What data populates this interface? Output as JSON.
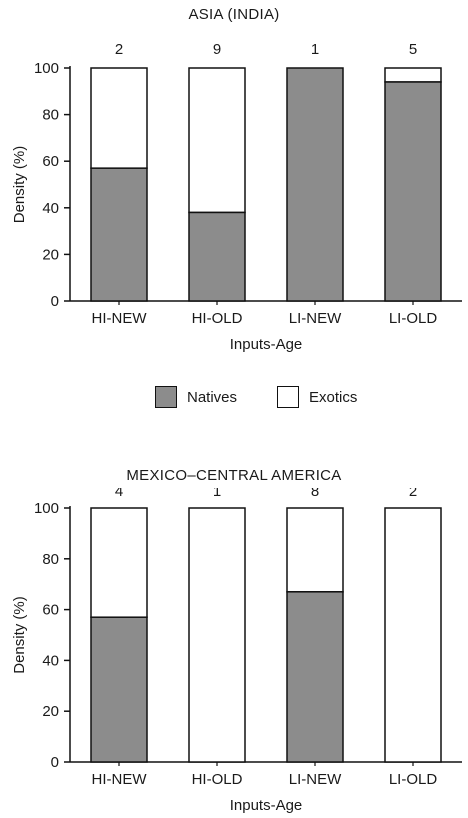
{
  "colors": {
    "natives": "#8c8c8c",
    "exotics": "#ffffff",
    "outline": "#111111"
  },
  "legend": {
    "natives_label": "Natives",
    "exotics_label": "Exotics"
  },
  "chart_data": [
    {
      "type": "bar",
      "stacked": true,
      "title": "ASIA (INDIA)",
      "xlabel": "Inputs-Age",
      "ylabel": "Density (%)",
      "ylim": [
        0,
        100
      ],
      "yticks": [
        0,
        20,
        40,
        60,
        80,
        100
      ],
      "categories": [
        "HI-NEW",
        "HI-OLD",
        "LI-NEW",
        "LI-OLD"
      ],
      "sample_sizes": [
        "2",
        "9",
        "1",
        "5"
      ],
      "series": [
        {
          "name": "Natives",
          "values": [
            57,
            38,
            100,
            94
          ]
        },
        {
          "name": "Exotics",
          "values": [
            43,
            62,
            0,
            6
          ]
        }
      ],
      "grid": false,
      "legend_position": "bottom-center"
    },
    {
      "type": "bar",
      "stacked": true,
      "title": "MEXICO–CENTRAL AMERICA",
      "xlabel": "Inputs-Age",
      "ylabel": "Density (%)",
      "ylim": [
        0,
        100
      ],
      "yticks": [
        0,
        20,
        40,
        60,
        80,
        100
      ],
      "categories": [
        "HI-NEW",
        "HI-OLD",
        "LI-NEW",
        "LI-OLD"
      ],
      "sample_sizes": [
        "4",
        "1",
        "8",
        "2"
      ],
      "series": [
        {
          "name": "Natives",
          "values": [
            57,
            0,
            67,
            0
          ]
        },
        {
          "name": "Exotics",
          "values": [
            43,
            100,
            33,
            100
          ]
        }
      ],
      "grid": false,
      "legend_position": "top-center"
    }
  ]
}
